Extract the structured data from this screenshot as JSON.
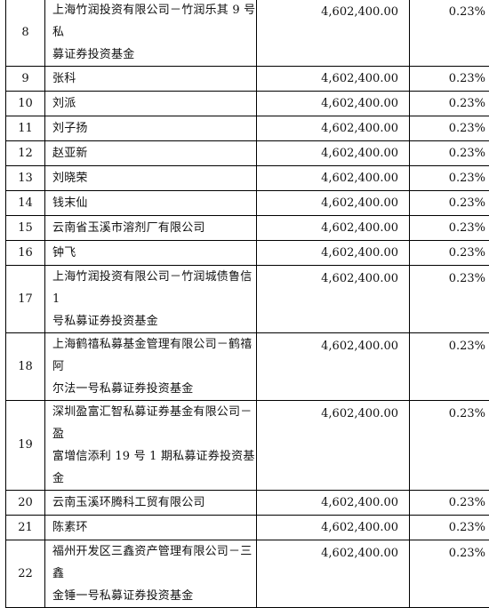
{
  "table": {
    "rows": [
      {
        "index": "8",
        "name_lines": [
          "上海竹润投资有限公司－竹润乐其 9 号私",
          "募证券投资基金"
        ],
        "amount": "4,602,400.00",
        "percent": "0.23%"
      },
      {
        "index": "9",
        "name_lines": [
          "张科"
        ],
        "amount": "4,602,400.00",
        "percent": "0.23%"
      },
      {
        "index": "10",
        "name_lines": [
          "刘派"
        ],
        "amount": "4,602,400.00",
        "percent": "0.23%"
      },
      {
        "index": "11",
        "name_lines": [
          "刘子扬"
        ],
        "amount": "4,602,400.00",
        "percent": "0.23%"
      },
      {
        "index": "12",
        "name_lines": [
          "赵亚新"
        ],
        "amount": "4,602,400.00",
        "percent": "0.23%"
      },
      {
        "index": "13",
        "name_lines": [
          "刘晓荣"
        ],
        "amount": "4,602,400.00",
        "percent": "0.23%"
      },
      {
        "index": "14",
        "name_lines": [
          "钱末仙"
        ],
        "amount": "4,602,400.00",
        "percent": "0.23%"
      },
      {
        "index": "15",
        "name_lines": [
          "云南省玉溪市溶剂厂有限公司"
        ],
        "amount": "4,602,400.00",
        "percent": "0.23%"
      },
      {
        "index": "16",
        "name_lines": [
          "钟飞"
        ],
        "amount": "4,602,400.00",
        "percent": "0.23%"
      },
      {
        "index": "17",
        "name_lines": [
          "上海竹润投资有限公司－竹润城债鲁信 1",
          "号私募证券投资基金"
        ],
        "amount": "4,602,400.00",
        "percent": "0.23%"
      },
      {
        "index": "18",
        "name_lines": [
          "上海鹤禧私募基金管理有限公司－鹤禧阿",
          "尔法一号私募证券投资基金"
        ],
        "amount": "4,602,400.00",
        "percent": "0.23%"
      },
      {
        "index": "19",
        "name_lines": [
          "深圳盈富汇智私募证券基金有限公司－盈",
          "富增信添利 19 号 1 期私募证券投资基金"
        ],
        "amount": "4,602,400.00",
        "percent": "0.23%"
      },
      {
        "index": "20",
        "name_lines": [
          "云南玉溪环腾科工贸有限公司"
        ],
        "amount": "4,602,400.00",
        "percent": "0.23%"
      },
      {
        "index": "21",
        "name_lines": [
          "陈素环"
        ],
        "amount": "4,602,400.00",
        "percent": "0.23%"
      },
      {
        "index": "22",
        "name_lines": [
          "福州开发区三鑫资产管理有限公司－三鑫",
          "金锤一号私募证券投资基金"
        ],
        "amount": "4,602,400.00",
        "percent": "0.23%"
      }
    ]
  }
}
